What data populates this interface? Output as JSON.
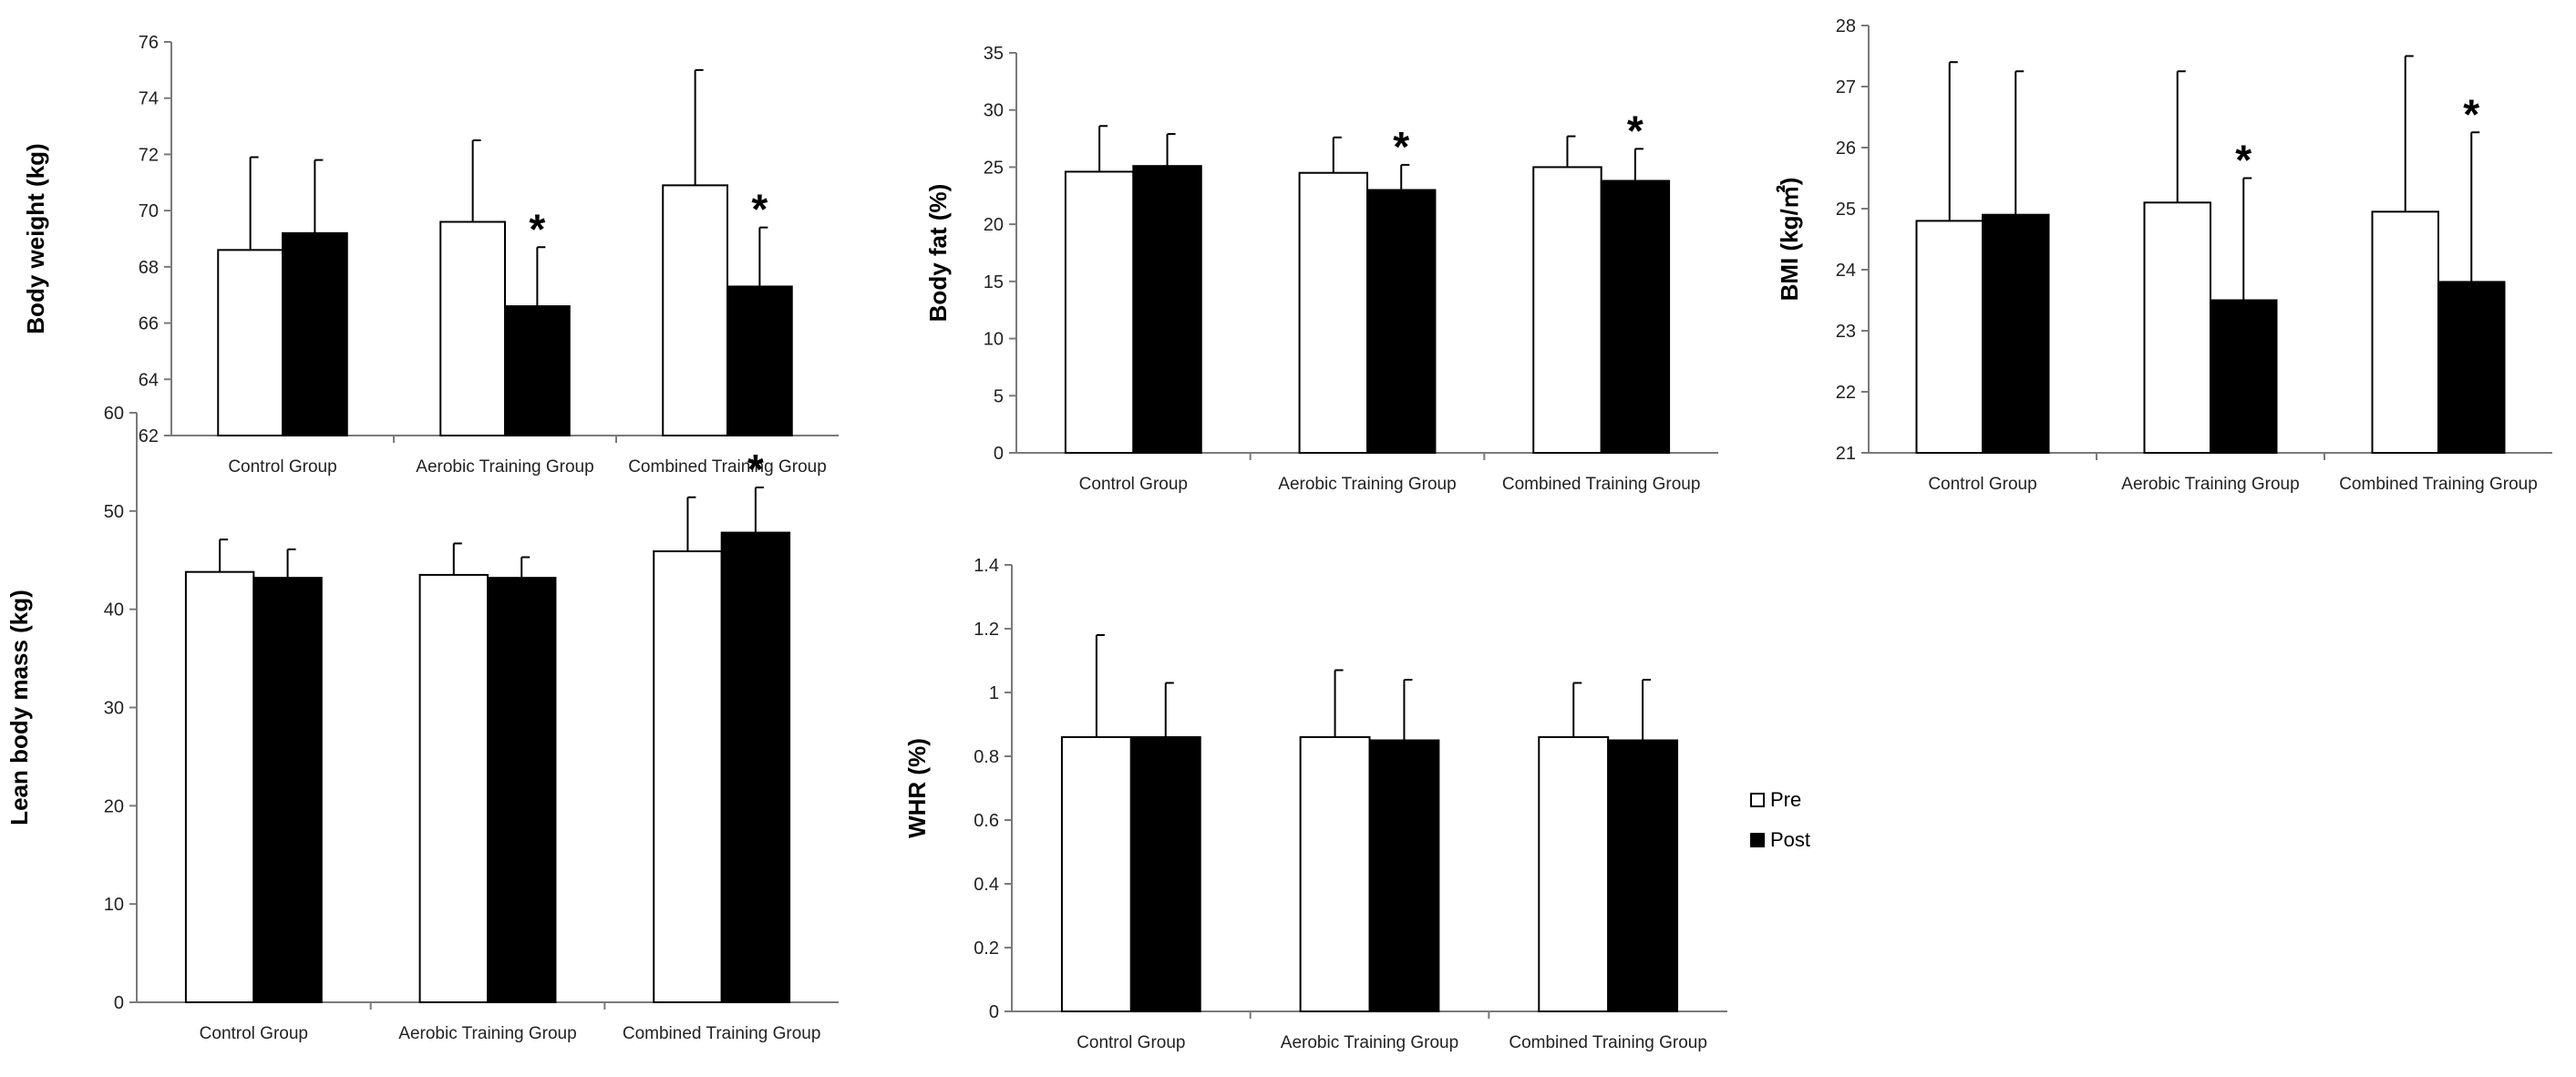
{
  "legend": {
    "pre_label": "Pre",
    "post_label": "Post"
  },
  "colors": {
    "pre": "#ffffff",
    "post": "#000000",
    "outline": "#000000",
    "axis": "#7a7a7a"
  },
  "chart_data": [
    {
      "type": "bar",
      "ylabel": "Body weight (kg)",
      "ylim": [
        62,
        76
      ],
      "yticks": [
        62,
        64,
        66,
        68,
        70,
        72,
        74,
        76
      ],
      "tick_labels": [
        "62",
        "64",
        "66",
        "68",
        "70",
        "72",
        "74",
        "76"
      ],
      "categories": [
        "Control Group",
        "Aerobic Training Group",
        "Combined Training Group"
      ],
      "series": [
        {
          "name": "Pre",
          "values": [
            68.6,
            69.6,
            70.9
          ],
          "errors": [
            3.3,
            2.9,
            4.1
          ]
        },
        {
          "name": "Post",
          "values": [
            69.2,
            66.6,
            67.3
          ],
          "errors": [
            2.6,
            2.1,
            2.1
          ]
        }
      ],
      "significance": [
        "",
        "*",
        "*"
      ]
    },
    {
      "type": "bar",
      "ylabel": "Body fat (%)",
      "ylim": [
        0,
        35
      ],
      "yticks": [
        0,
        5,
        10,
        15,
        20,
        25,
        30,
        35
      ],
      "tick_labels": [
        "0",
        "5",
        "10",
        "15",
        "20",
        "25",
        "30",
        "35"
      ],
      "categories": [
        "Control Group",
        "Aerobic Training Group",
        "Combined Training Group"
      ],
      "series": [
        {
          "name": "Pre",
          "values": [
            24.6,
            24.5,
            25.0
          ],
          "errors": [
            4.0,
            3.1,
            2.7
          ]
        },
        {
          "name": "Post",
          "values": [
            25.1,
            23.0,
            23.8
          ],
          "errors": [
            2.8,
            2.2,
            2.8
          ]
        }
      ],
      "significance": [
        "",
        "*",
        "*"
      ]
    },
    {
      "type": "bar",
      "ylabel": "BMI (kg/㎡)",
      "ylim": [
        21,
        28
      ],
      "yticks": [
        21,
        22,
        23,
        24,
        25,
        26,
        27,
        28
      ],
      "tick_labels": [
        "21",
        "22",
        "23",
        "24",
        "25",
        "26",
        "27",
        "28"
      ],
      "categories": [
        "Control Group",
        "Aerobic Training Group",
        "Combined Training Group"
      ],
      "series": [
        {
          "name": "Pre",
          "values": [
            24.8,
            25.1,
            24.95
          ],
          "errors": [
            2.6,
            2.15,
            2.55
          ]
        },
        {
          "name": "Post",
          "values": [
            24.9,
            23.5,
            23.8
          ],
          "errors": [
            2.35,
            2.0,
            2.45
          ]
        }
      ],
      "significance": [
        "",
        "*",
        "*"
      ]
    },
    {
      "type": "bar",
      "ylabel": "Lean body mass (kg)",
      "ylim": [
        0,
        60
      ],
      "yticks": [
        0,
        10,
        20,
        30,
        40,
        50,
        60
      ],
      "tick_labels": [
        "0",
        "10",
        "20",
        "30",
        "40",
        "50",
        "60"
      ],
      "categories": [
        "Control Group",
        "Aerobic Training Group",
        "Combined Training Group"
      ],
      "series": [
        {
          "name": "Pre",
          "values": [
            43.8,
            43.5,
            45.9
          ],
          "errors": [
            3.3,
            3.2,
            5.5
          ]
        },
        {
          "name": "Post",
          "values": [
            43.2,
            43.2,
            47.8
          ],
          "errors": [
            2.9,
            2.1,
            4.6
          ]
        }
      ],
      "significance": [
        "",
        "",
        "*"
      ]
    },
    {
      "type": "bar",
      "ylabel": "WHR (%)",
      "ylim": [
        0,
        1.4
      ],
      "yticks": [
        0,
        0.2,
        0.4,
        0.6,
        0.8,
        1.0,
        1.2,
        1.4
      ],
      "tick_labels": [
        "0",
        "0.2",
        "0.4",
        "0.6",
        "0.8",
        "1",
        "1.2",
        "1.4"
      ],
      "categories": [
        "Control Group",
        "Aerobic Training Group",
        "Combined Training Group"
      ],
      "series": [
        {
          "name": "Pre",
          "values": [
            0.86,
            0.86,
            0.86
          ],
          "errors": [
            0.32,
            0.21,
            0.17
          ]
        },
        {
          "name": "Post",
          "values": [
            0.86,
            0.85,
            0.85
          ],
          "errors": [
            0.17,
            0.19,
            0.19
          ]
        }
      ],
      "significance": [
        "",
        "",
        ""
      ]
    }
  ]
}
